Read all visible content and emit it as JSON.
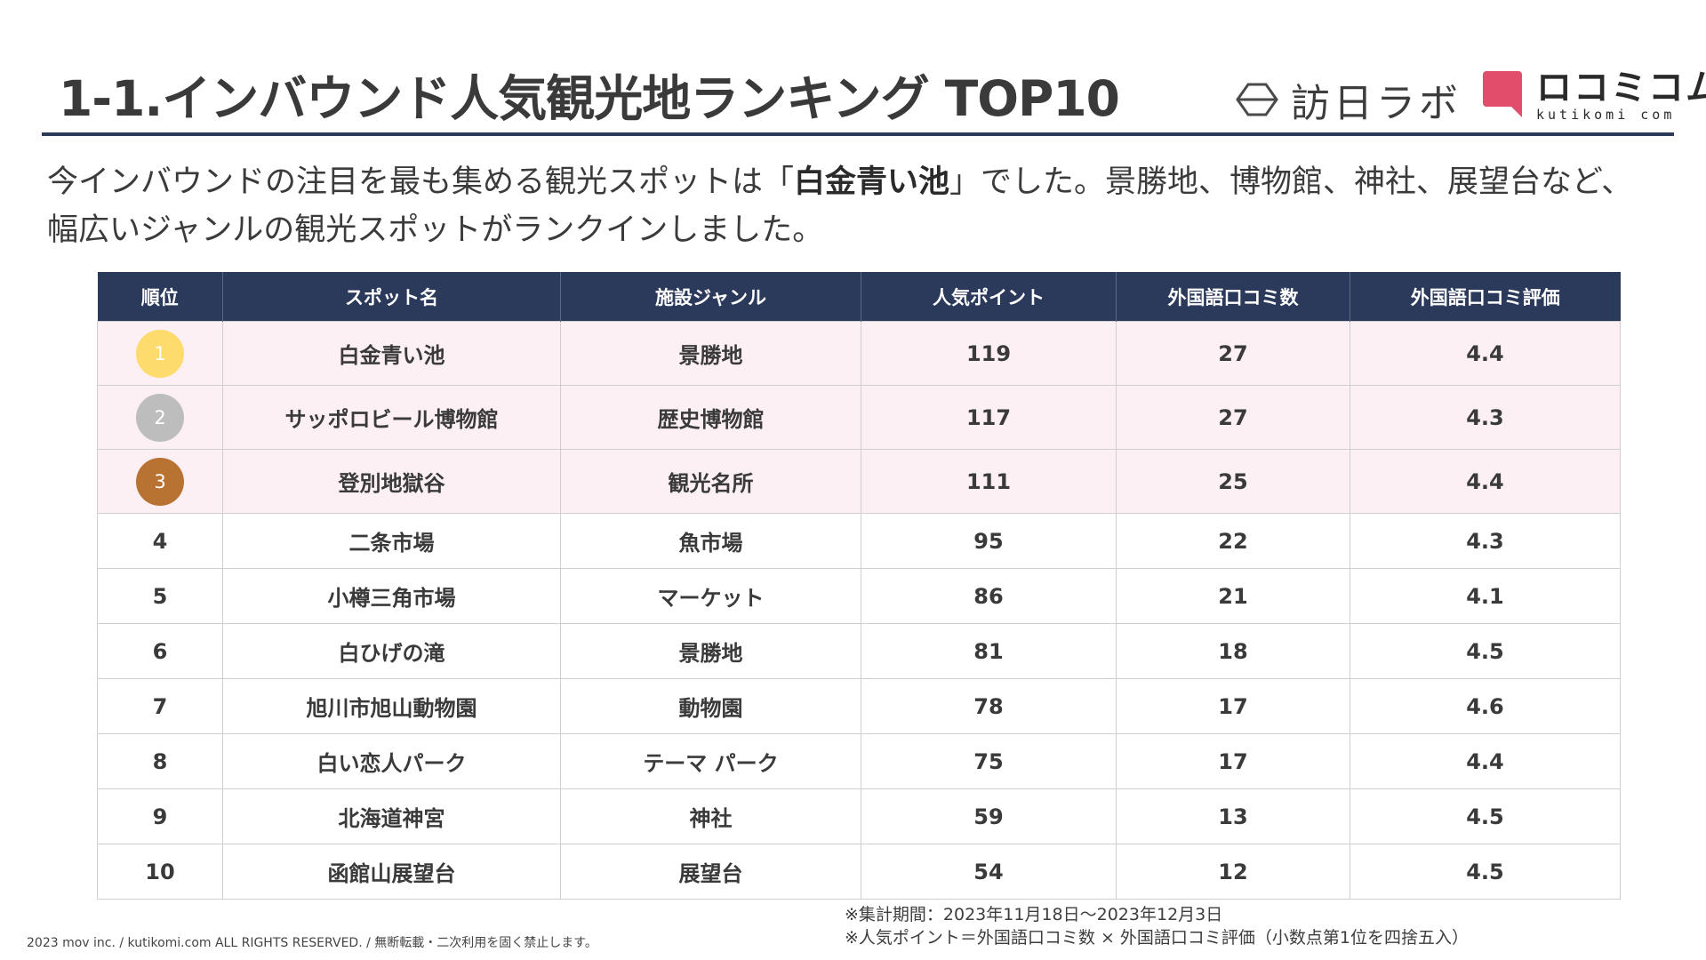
{
  "header": {
    "title": "1-1.インバウンド人気観光地ランキング TOP10",
    "logo_hojin_text": "訪日ラボ",
    "logo_kuti_text": "ロコミコム",
    "logo_kuti_sub": "kutikomi com",
    "brand_color": "#2b3a5a",
    "accent_color": "#e14d6a"
  },
  "lead": {
    "part1": "今インバウンドの注目を最も集める観光スポットは「",
    "highlight": "白金青い池",
    "part2": "」でした。景勝地、博物館、神社、展望台など、",
    "line2": "幅広いジャンルの観光スポットがランクインしました。"
  },
  "table": {
    "headers": [
      "順位",
      "スポット名",
      "施設ジャンル",
      "人気ポイント",
      "外国語口コミ数",
      "外国語口コミ評価"
    ],
    "rows": [
      [
        "1",
        "白金青い池",
        "景勝地",
        "119",
        "27",
        "4.4"
      ],
      [
        "2",
        "サッポロビール博物館",
        "歴史博物館",
        "117",
        "27",
        "4.3"
      ],
      [
        "3",
        "登別地獄谷",
        "観光名所",
        "111",
        "25",
        "4.4"
      ],
      [
        "4",
        "二条市場",
        "魚市場",
        "95",
        "22",
        "4.3"
      ],
      [
        "5",
        "小樽三角市場",
        "マーケット",
        "86",
        "21",
        "4.1"
      ],
      [
        "6",
        "白ひげの滝",
        "景勝地",
        "81",
        "18",
        "4.5"
      ],
      [
        "7",
        "旭川市旭山動物園",
        "動物園",
        "78",
        "17",
        "4.6"
      ],
      [
        "8",
        "白い恋人パーク",
        "テーマ パーク",
        "75",
        "17",
        "4.4"
      ],
      [
        "9",
        "北海道神宮",
        "神社",
        "59",
        "13",
        "4.5"
      ],
      [
        "10",
        "函館山展望台",
        "展望台",
        "54",
        "12",
        "4.5"
      ]
    ],
    "medal_colors": [
      "#fddb6d",
      "#bdbdbd",
      "#b87333"
    ],
    "top_row_bg": "#fdf0f4"
  },
  "notes": {
    "line1": "※集計期間：2023年11月18日～2023年12月3日",
    "line2": "※人気ポイント＝外国語口コミ数 × 外国語口コミ評価（小数点第1位を四捨五入）"
  },
  "footer": {
    "copyright": "2023 mov inc. / kutikomi.com ALL RIGHTS RESERVED. / 無断転載・二次利用を固く禁止します。"
  }
}
